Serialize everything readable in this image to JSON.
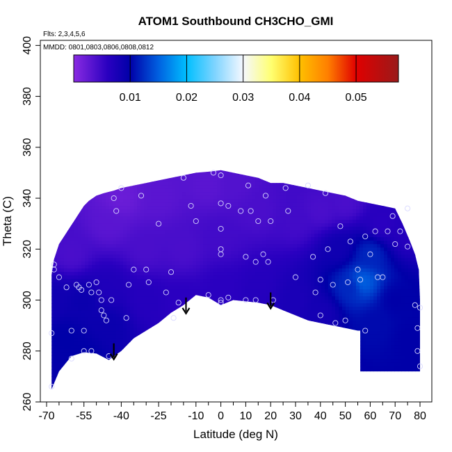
{
  "chart_data": {
    "type": "heatmap",
    "title": "ATOM1 Southbound CH3CHO_GMI",
    "subtitle_flights": "Flts: 2,3,4,5,6",
    "subtitle_dates": "MMDD: 0801,0803,0806,0808,0812",
    "xlabel": "Latitude (deg N)",
    "ylabel": "Theta (C)",
    "xlim": [
      -70,
      82
    ],
    "ylim": [
      260,
      402
    ],
    "x_ticks": [
      -70,
      -55,
      -40,
      -25,
      -10,
      0,
      10,
      20,
      30,
      40,
      50,
      60,
      70,
      80
    ],
    "x_tick_labels": [
      "-70",
      "-55",
      "-40",
      "-25",
      "-10",
      "0",
      "10",
      "20",
      "30",
      "40",
      "50",
      "60",
      "70",
      "80"
    ],
    "x_minor_ticks": [
      -65,
      -60,
      -50,
      -45,
      -35,
      -30,
      -20,
      -15,
      -5,
      5,
      15,
      25,
      35,
      45,
      55,
      65,
      75
    ],
    "y_ticks": [
      260,
      280,
      300,
      320,
      340,
      360,
      380,
      400
    ],
    "y_tick_labels": [
      "260",
      "280",
      "300",
      "320",
      "340",
      "360",
      "380",
      "400"
    ],
    "colorbar": {
      "range": [
        0,
        0.0575
      ],
      "ticks": [
        0.01,
        0.02,
        0.03,
        0.04,
        0.05
      ],
      "tick_labels": [
        "0.01",
        "0.02",
        "0.03",
        "0.04",
        "0.05"
      ],
      "stops": [
        {
          "v": 0.0,
          "color": "#8a2be2"
        },
        {
          "v": 0.006,
          "color": "#2a00c0"
        },
        {
          "v": 0.01,
          "color": "#0000a8"
        },
        {
          "v": 0.015,
          "color": "#0060e0"
        },
        {
          "v": 0.02,
          "color": "#00bfff"
        },
        {
          "v": 0.025,
          "color": "#7fd4ff"
        },
        {
          "v": 0.03,
          "color": "#f5f8ff"
        },
        {
          "v": 0.035,
          "color": "#ffff70"
        },
        {
          "v": 0.04,
          "color": "#ffc000"
        },
        {
          "v": 0.045,
          "color": "#ff7f00"
        },
        {
          "v": 0.05,
          "color": "#e00000"
        },
        {
          "v": 0.0575,
          "color": "#9a1a1a"
        }
      ]
    },
    "coverage": {
      "top_boundary": [
        [
          -68,
          310
        ],
        [
          -67,
          316
        ],
        [
          -65,
          322
        ],
        [
          -63,
          325
        ],
        [
          -61,
          328
        ],
        [
          -59,
          331
        ],
        [
          -57,
          334
        ],
        [
          -55,
          337
        ],
        [
          -53,
          339
        ],
        [
          -50,
          341
        ],
        [
          -47,
          342
        ],
        [
          -43,
          343
        ],
        [
          -40,
          344
        ],
        [
          -35,
          345
        ],
        [
          -30,
          346
        ],
        [
          -25,
          347
        ],
        [
          -20,
          348
        ],
        [
          -15,
          349
        ],
        [
          -10,
          350
        ],
        [
          -4,
          350.5
        ],
        [
          0,
          351
        ],
        [
          5,
          350
        ],
        [
          10,
          349
        ],
        [
          15,
          348
        ],
        [
          20,
          346
        ],
        [
          25,
          346
        ],
        [
          30,
          345
        ],
        [
          35,
          344
        ],
        [
          40,
          343
        ],
        [
          45,
          342
        ],
        [
          50,
          341
        ],
        [
          55,
          339
        ],
        [
          60,
          338
        ],
        [
          65,
          337
        ],
        [
          70,
          336
        ],
        [
          73,
          330
        ],
        [
          76,
          323
        ],
        [
          78,
          318
        ],
        [
          79.5,
          312
        ],
        [
          80,
          300
        ],
        [
          80,
          272
        ]
      ],
      "bottom_boundary": [
        [
          -68,
          265
        ],
        [
          -65,
          272
        ],
        [
          -60,
          278
        ],
        [
          -55,
          279.5
        ],
        [
          -50,
          279
        ],
        [
          -45,
          276.5
        ],
        [
          -40,
          280
        ],
        [
          -35,
          285
        ],
        [
          -30,
          288
        ],
        [
          -25,
          291
        ],
        [
          -20,
          295
        ],
        [
          -15,
          298
        ],
        [
          -10,
          302
        ],
        [
          -5,
          301
        ],
        [
          0,
          298
        ],
        [
          5,
          300
        ],
        [
          10,
          299.5
        ],
        [
          15,
          299
        ],
        [
          20,
          298
        ],
        [
          25,
          296
        ],
        [
          30,
          294
        ],
        [
          35,
          292
        ],
        [
          40,
          291
        ],
        [
          45,
          290
        ],
        [
          50,
          289
        ],
        [
          55,
          288
        ],
        [
          56,
          288
        ],
        [
          56,
          272
        ],
        [
          80,
          272
        ]
      ],
      "color_field": [
        {
          "lat": -68,
          "theta": 300,
          "value": 0.0085
        },
        {
          "lat": -62,
          "theta": 285,
          "value": 0.01
        },
        {
          "lat": -55,
          "theta": 278,
          "value": 0.01
        },
        {
          "lat": -55,
          "theta": 300,
          "value": 0.009
        },
        {
          "lat": -60,
          "theta": 318,
          "value": 0.004
        },
        {
          "lat": -45,
          "theta": 290,
          "value": 0.009
        },
        {
          "lat": -45,
          "theta": 305,
          "value": 0.007
        },
        {
          "lat": -45,
          "theta": 330,
          "value": 0.003
        },
        {
          "lat": -40,
          "theta": 340,
          "value": 0.002
        },
        {
          "lat": -30,
          "theta": 300,
          "value": 0.0065
        },
        {
          "lat": -30,
          "theta": 320,
          "value": 0.004
        },
        {
          "lat": -25,
          "theta": 340,
          "value": 0.003
        },
        {
          "lat": -15,
          "theta": 300,
          "value": 0.006
        },
        {
          "lat": -15,
          "theta": 320,
          "value": 0.004
        },
        {
          "lat": -5,
          "theta": 345,
          "value": 0.003
        },
        {
          "lat": 0,
          "theta": 305,
          "value": 0.006
        },
        {
          "lat": 0,
          "theta": 325,
          "value": 0.0045
        },
        {
          "lat": 15,
          "theta": 305,
          "value": 0.0065
        },
        {
          "lat": 15,
          "theta": 335,
          "value": 0.004
        },
        {
          "lat": 30,
          "theta": 300,
          "value": 0.0075
        },
        {
          "lat": 30,
          "theta": 330,
          "value": 0.0045
        },
        {
          "lat": 40,
          "theta": 295,
          "value": 0.008
        },
        {
          "lat": 40,
          "theta": 335,
          "value": 0.004
        },
        {
          "lat": 47,
          "theta": 320,
          "value": 0.0085
        },
        {
          "lat": 52,
          "theta": 305,
          "value": 0.012
        },
        {
          "lat": 57,
          "theta": 307,
          "value": 0.015
        },
        {
          "lat": 60,
          "theta": 318,
          "value": 0.012
        },
        {
          "lat": 62,
          "theta": 290,
          "value": 0.0105
        },
        {
          "lat": 65,
          "theta": 330,
          "value": 0.006
        },
        {
          "lat": 70,
          "theta": 300,
          "value": 0.01
        },
        {
          "lat": 76,
          "theta": 285,
          "value": 0.01
        },
        {
          "lat": 75,
          "theta": 325,
          "value": 0.0065
        },
        {
          "lat": 5,
          "theta": 345,
          "value": 0.0035
        },
        {
          "lat": 50,
          "theta": 338,
          "value": 0.004
        }
      ]
    },
    "sample_points": [
      [
        -68,
        266
      ],
      [
        -68,
        287
      ],
      [
        -67,
        312
      ],
      [
        -67,
        314
      ],
      [
        -65,
        309
      ],
      [
        -62,
        305
      ],
      [
        -60,
        288
      ],
      [
        -60,
        277
      ],
      [
        -58,
        306
      ],
      [
        -57,
        305
      ],
      [
        -56,
        304
      ],
      [
        -55,
        288
      ],
      [
        -55,
        280
      ],
      [
        -53,
        306
      ],
      [
        -52,
        303
      ],
      [
        -52,
        280
      ],
      [
        -50,
        307
      ],
      [
        -49,
        303
      ],
      [
        -48,
        296
      ],
      [
        -48,
        300
      ],
      [
        -47,
        294
      ],
      [
        -46,
        292
      ],
      [
        -45,
        278
      ],
      [
        -44,
        300
      ],
      [
        -43,
        340
      ],
      [
        -42,
        335
      ],
      [
        -40,
        344
      ],
      [
        -38,
        293
      ],
      [
        -37,
        306
      ],
      [
        -35,
        312
      ],
      [
        -32,
        341
      ],
      [
        -30,
        312
      ],
      [
        -29,
        307
      ],
      [
        -25,
        330
      ],
      [
        -22,
        303
      ],
      [
        -20,
        311
      ],
      [
        -19,
        293
      ],
      [
        -17,
        299
      ],
      [
        -15,
        348
      ],
      [
        -12,
        337
      ],
      [
        -10,
        331
      ],
      [
        -5,
        302
      ],
      [
        -3,
        350
      ],
      [
        0,
        349
      ],
      [
        0,
        338
      ],
      [
        0,
        328
      ],
      [
        0,
        320
      ],
      [
        0,
        318
      ],
      [
        0,
        300
      ],
      [
        0,
        299
      ],
      [
        3,
        337
      ],
      [
        3,
        301
      ],
      [
        8,
        335
      ],
      [
        10,
        300
      ],
      [
        10,
        317
      ],
      [
        11,
        345
      ],
      [
        12,
        335
      ],
      [
        14,
        300
      ],
      [
        14,
        315
      ],
      [
        15,
        331
      ],
      [
        17,
        318
      ],
      [
        18,
        341
      ],
      [
        19,
        315
      ],
      [
        20,
        331
      ],
      [
        21,
        300
      ],
      [
        26,
        344
      ],
      [
        27,
        335
      ],
      [
        30,
        309
      ],
      [
        35,
        345
      ],
      [
        37,
        317
      ],
      [
        38,
        303
      ],
      [
        40,
        294
      ],
      [
        40,
        308
      ],
      [
        42,
        342
      ],
      [
        43,
        320
      ],
      [
        45,
        306
      ],
      [
        46,
        291
      ],
      [
        48,
        329
      ],
      [
        50,
        292
      ],
      [
        51,
        307
      ],
      [
        52,
        323
      ],
      [
        55,
        312
      ],
      [
        56,
        308
      ],
      [
        58,
        325
      ],
      [
        58,
        288
      ],
      [
        60,
        318
      ],
      [
        62,
        327
      ],
      [
        63,
        309
      ],
      [
        65,
        309
      ],
      [
        67,
        327
      ],
      [
        69,
        333
      ],
      [
        70,
        322
      ],
      [
        72,
        327
      ],
      [
        75,
        321
      ],
      [
        75,
        336
      ],
      [
        78,
        298
      ],
      [
        79,
        289
      ],
      [
        79,
        280
      ],
      [
        80,
        274
      ],
      [
        80,
        297
      ]
    ],
    "arrows": [
      {
        "lat": -43,
        "theta": 277
      },
      {
        "lat": -14,
        "theta": 295
      },
      {
        "lat": 20,
        "theta": 297
      }
    ]
  }
}
